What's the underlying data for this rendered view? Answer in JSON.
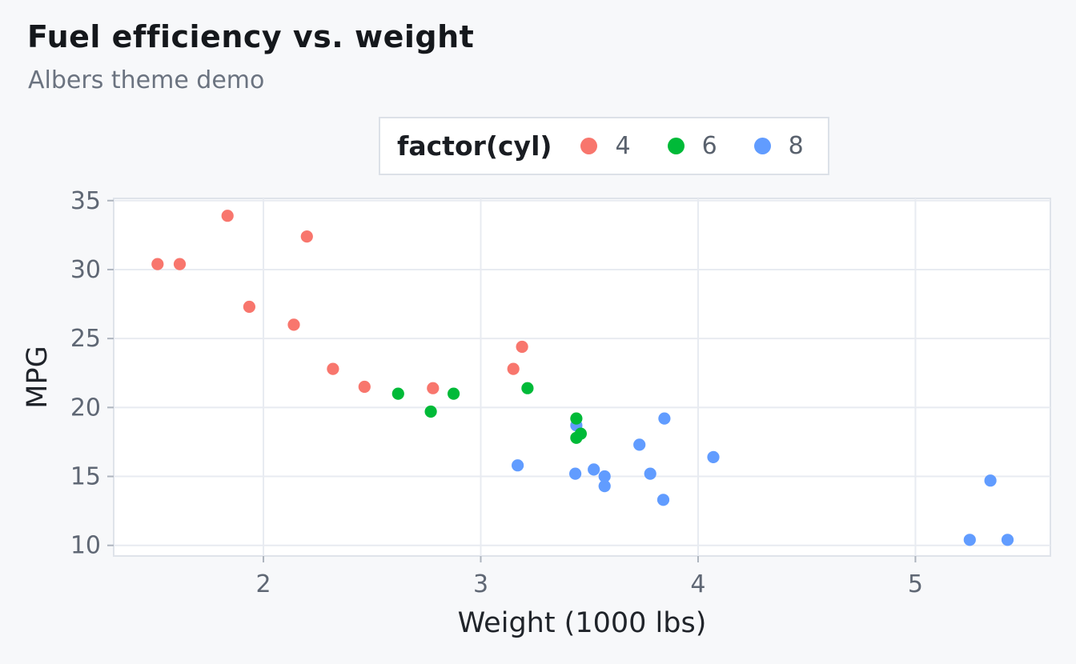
{
  "header": {
    "title": "Fuel efficiency vs. weight",
    "subtitle": "Albers theme demo"
  },
  "legend": {
    "title": "factor(cyl)",
    "entries": [
      {
        "label": "4",
        "color": "#f8766d"
      },
      {
        "label": "6",
        "color": "#00ba38"
      },
      {
        "label": "8",
        "color": "#619cff"
      }
    ]
  },
  "chart_data": {
    "type": "scatter",
    "title": "Fuel efficiency vs. weight",
    "subtitle": "Albers theme demo",
    "xlabel": "Weight (1000 lbs)",
    "ylabel": "MPG",
    "x_ticks": [
      2,
      3,
      4,
      5
    ],
    "y_ticks": [
      10,
      15,
      20,
      25,
      30,
      35
    ],
    "xlim": [
      1.311,
      5.621
    ],
    "ylim": [
      9.23,
      35.16
    ],
    "grid": true,
    "legend_position": "top",
    "point_radius_px": 7.6,
    "series_colors": {
      "4": "#f8766d",
      "6": "#00ba38",
      "8": "#619cff"
    },
    "points": [
      {
        "wt": 2.62,
        "mpg": 21.0,
        "cyl": "6"
      },
      {
        "wt": 2.875,
        "mpg": 21.0,
        "cyl": "6"
      },
      {
        "wt": 2.32,
        "mpg": 22.8,
        "cyl": "4"
      },
      {
        "wt": 3.215,
        "mpg": 21.4,
        "cyl": "6"
      },
      {
        "wt": 3.44,
        "mpg": 18.7,
        "cyl": "8"
      },
      {
        "wt": 3.46,
        "mpg": 18.1,
        "cyl": "6"
      },
      {
        "wt": 3.57,
        "mpg": 14.3,
        "cyl": "8"
      },
      {
        "wt": 3.19,
        "mpg": 24.4,
        "cyl": "4"
      },
      {
        "wt": 3.15,
        "mpg": 22.8,
        "cyl": "4"
      },
      {
        "wt": 3.44,
        "mpg": 19.2,
        "cyl": "6"
      },
      {
        "wt": 3.44,
        "mpg": 17.8,
        "cyl": "6"
      },
      {
        "wt": 4.07,
        "mpg": 16.4,
        "cyl": "8"
      },
      {
        "wt": 3.73,
        "mpg": 17.3,
        "cyl": "8"
      },
      {
        "wt": 3.78,
        "mpg": 15.2,
        "cyl": "8"
      },
      {
        "wt": 5.25,
        "mpg": 10.4,
        "cyl": "8"
      },
      {
        "wt": 5.424,
        "mpg": 10.4,
        "cyl": "8"
      },
      {
        "wt": 5.345,
        "mpg": 14.7,
        "cyl": "8"
      },
      {
        "wt": 2.2,
        "mpg": 32.4,
        "cyl": "4"
      },
      {
        "wt": 1.615,
        "mpg": 30.4,
        "cyl": "4"
      },
      {
        "wt": 1.835,
        "mpg": 33.9,
        "cyl": "4"
      },
      {
        "wt": 2.465,
        "mpg": 21.5,
        "cyl": "4"
      },
      {
        "wt": 3.52,
        "mpg": 15.5,
        "cyl": "8"
      },
      {
        "wt": 3.435,
        "mpg": 15.2,
        "cyl": "8"
      },
      {
        "wt": 3.84,
        "mpg": 13.3,
        "cyl": "8"
      },
      {
        "wt": 3.845,
        "mpg": 19.2,
        "cyl": "8"
      },
      {
        "wt": 1.935,
        "mpg": 27.3,
        "cyl": "4"
      },
      {
        "wt": 2.14,
        "mpg": 26.0,
        "cyl": "4"
      },
      {
        "wt": 1.513,
        "mpg": 30.4,
        "cyl": "4"
      },
      {
        "wt": 3.17,
        "mpg": 15.8,
        "cyl": "8"
      },
      {
        "wt": 2.77,
        "mpg": 19.7,
        "cyl": "6"
      },
      {
        "wt": 3.57,
        "mpg": 15.0,
        "cyl": "8"
      },
      {
        "wt": 2.78,
        "mpg": 21.4,
        "cyl": "4"
      }
    ],
    "colors": {
      "page_background": "#f7f8fa",
      "panel_background": "#ffffff",
      "panel_border": "#dfe3ea",
      "gridline": "#e8ebf1",
      "tick_mark": "#adb4be",
      "tick_label": "#5f6774",
      "axis_title": "#20242a",
      "title": "#15181c",
      "subtitle": "#6b7380"
    }
  }
}
